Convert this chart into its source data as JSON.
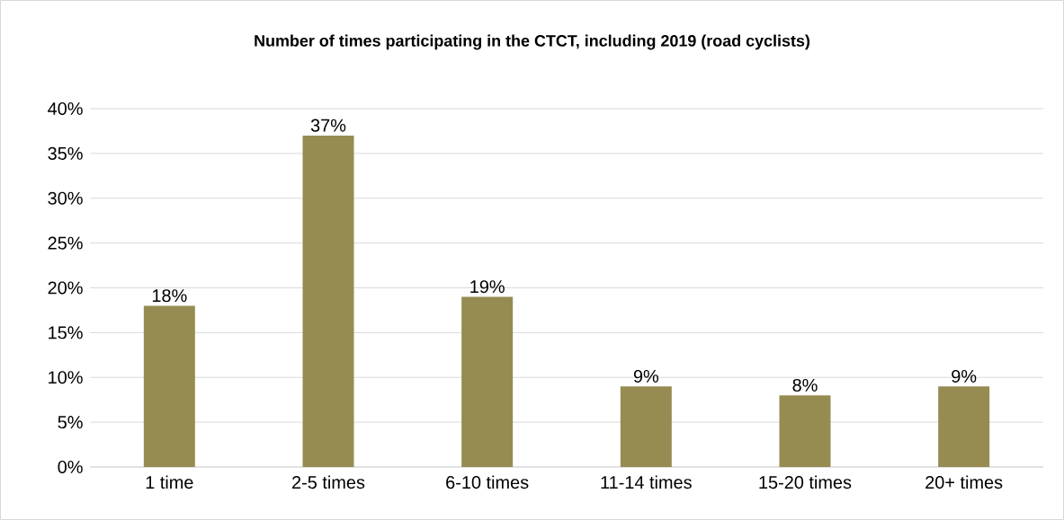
{
  "chart_data": {
    "type": "bar",
    "title": "Number of times participating in the CTCT, including 2019 (road cyclists)",
    "categories": [
      "1 time",
      "2-5 times",
      "6-10 times",
      "11-14 times",
      "15-20 times",
      "20+ times"
    ],
    "values": [
      18,
      37,
      19,
      9,
      8,
      9
    ],
    "value_labels": [
      "18%",
      "37%",
      "19%",
      "9%",
      "8%",
      "9%"
    ],
    "color": "#968c52",
    "ylim": [
      0,
      40
    ],
    "yticks": [
      {
        "value": 0,
        "label": "0%"
      },
      {
        "value": 5,
        "label": "5%"
      },
      {
        "value": 10,
        "label": "10%"
      },
      {
        "value": 15,
        "label": "15%"
      },
      {
        "value": 20,
        "label": "20%"
      },
      {
        "value": 25,
        "label": "25%"
      },
      {
        "value": 30,
        "label": "30%"
      },
      {
        "value": 35,
        "label": "35%"
      },
      {
        "value": 40,
        "label": "40%"
      }
    ],
    "grid": "y"
  }
}
